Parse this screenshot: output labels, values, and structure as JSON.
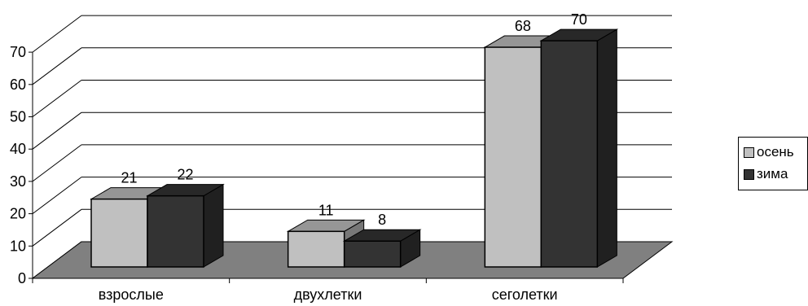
{
  "chart_data": {
    "type": "bar",
    "title": "",
    "xlabel": "",
    "ylabel": "",
    "categories": [
      "взрослые",
      "двухлетки",
      "сеголетки"
    ],
    "series": [
      {
        "name": "осень",
        "values": [
          21,
          11,
          68
        ],
        "color": "#c0c0c0"
      },
      {
        "name": "зима",
        "values": [
          22,
          8,
          70
        ],
        "color": "#333333"
      }
    ],
    "ylim": [
      0,
      70
    ],
    "yticks": [
      0,
      10,
      20,
      30,
      40,
      50,
      60,
      70
    ],
    "grid": true,
    "legend_position": "right",
    "floor_color": "#808080"
  }
}
